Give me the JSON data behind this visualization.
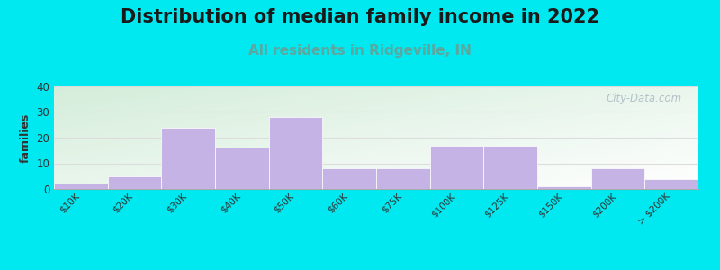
{
  "title": "Distribution of median family income in 2022",
  "subtitle": "All residents in Ridgeville, IN",
  "categories": [
    "$10K",
    "$20K",
    "$30K",
    "$40K",
    "$50K",
    "$60K",
    "$75K",
    "$100K",
    "$125K",
    "$150K",
    "$200K",
    "> $200K"
  ],
  "values": [
    2,
    5,
    24,
    16,
    28,
    8,
    8,
    17,
    17,
    1,
    8,
    4
  ],
  "bar_color": "#c5b3e6",
  "bar_edge_color": "#c5b3e6",
  "title_fontsize": 15,
  "subtitle_fontsize": 11,
  "subtitle_color": "#5ba8a0",
  "ylabel": "families",
  "ylim": [
    0,
    40
  ],
  "yticks": [
    0,
    10,
    20,
    30,
    40
  ],
  "background_outer": "#00e8f0",
  "bg_top_left": "#d4edda",
  "bg_bottom_right": "#ffffff",
  "grid_color": "#dddddd",
  "watermark": "City-Data.com"
}
